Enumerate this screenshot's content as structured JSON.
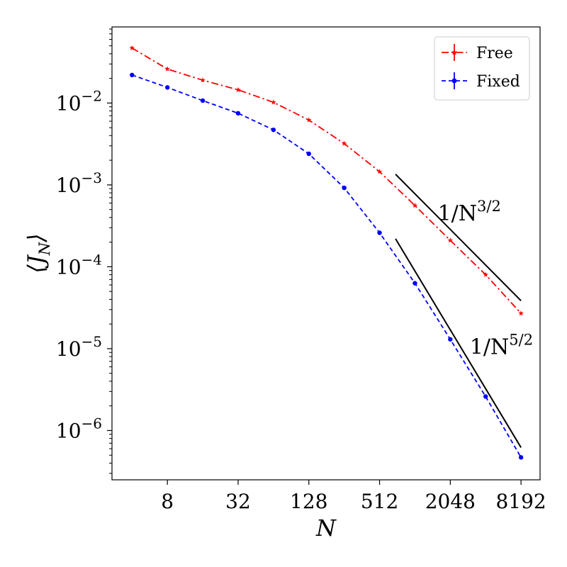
{
  "chart_data": {
    "type": "line",
    "xscale": "log2",
    "yscale": "log10",
    "xlabel": "N",
    "ylabel": "⟨J",
    "ylabel_sub": "N",
    "ylabel_close": "⟩",
    "xlim": [
      2.7,
      11900
    ],
    "ylim": [
      2.5e-07,
      0.085
    ],
    "x_ticks": [
      8,
      32,
      128,
      512,
      2048,
      8192
    ],
    "x_tick_labels": [
      "8",
      "32",
      "128",
      "512",
      "2048",
      "8192"
    ],
    "y_ticks": [
      1e-06,
      1e-05,
      0.0001,
      0.001,
      0.01
    ],
    "y_tick_labels": [
      {
        "base": "10",
        "exp": "−6"
      },
      {
        "base": "10",
        "exp": "−5"
      },
      {
        "base": "10",
        "exp": "−4"
      },
      {
        "base": "10",
        "exp": "−3"
      },
      {
        "base": "10",
        "exp": "−2"
      }
    ],
    "grid": false,
    "legend_position": "top-right",
    "x": [
      4,
      8,
      16,
      32,
      64,
      128,
      256,
      512,
      1024,
      2048,
      4096,
      8192
    ],
    "series": [
      {
        "name": "Free",
        "color": "#ff0000",
        "linestyle": "dash-dot",
        "marker": "star",
        "values": [
          0.047,
          0.026,
          0.019,
          0.0145,
          0.0102,
          0.0062,
          0.0032,
          0.00145,
          0.00056,
          0.00021,
          8e-05,
          2.7e-05
        ]
      },
      {
        "name": "Fixed",
        "color": "#0000ff",
        "linestyle": "dashed",
        "marker": "circle",
        "values": [
          0.022,
          0.0155,
          0.0107,
          0.0075,
          0.0047,
          0.0024,
          0.00092,
          0.00026,
          6.3e-05,
          1.3e-05,
          2.6e-06,
          4.7e-07
        ]
      }
    ],
    "annotations": [
      {
        "label": "1/N",
        "exp": "3/2",
        "line": {
          "x": [
            700,
            8192
          ],
          "y": [
            0.00135,
            3.85e-05
          ]
        },
        "text_at": {
          "x": 1600,
          "y": 0.00037
        }
      },
      {
        "label": "1/N",
        "exp": "5/2",
        "line": {
          "x": [
            700,
            8192
          ],
          "y": [
            0.00022,
            6.2e-07
          ]
        },
        "text_at": {
          "x": 3000,
          "y": 8.6e-06
        }
      }
    ]
  }
}
